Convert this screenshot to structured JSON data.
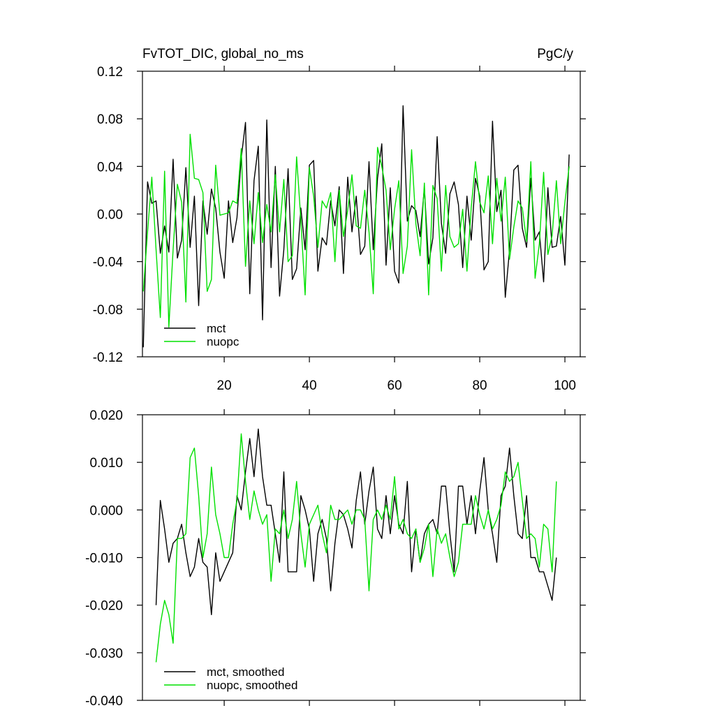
{
  "chart_data": [
    {
      "type": "line",
      "title": "FvTOT_DIC, global_no_ms",
      "units": "PgC/y",
      "x": [
        1,
        2,
        3,
        4,
        5,
        6,
        7,
        8,
        9,
        10,
        11,
        12,
        13,
        14,
        15,
        16,
        17,
        18,
        19,
        20,
        21,
        22,
        23,
        24,
        25,
        26,
        27,
        28,
        29,
        30,
        31,
        32,
        33,
        34,
        35,
        36,
        37,
        38,
        39,
        40,
        41,
        42,
        43,
        44,
        45,
        46,
        47,
        48,
        49,
        50,
        51,
        52,
        53,
        54,
        55,
        56,
        57,
        58,
        59,
        60,
        61,
        62,
        63,
        64,
        65,
        66,
        67,
        68,
        69,
        70,
        71,
        72,
        73,
        74,
        75,
        76,
        77,
        78,
        79,
        80,
        81,
        82,
        83,
        84,
        85,
        86,
        87,
        88,
        89,
        90,
        91,
        92,
        93,
        94,
        95,
        96,
        97,
        98,
        99,
        100,
        101
      ],
      "series": [
        {
          "name": "mct",
          "color": "#000000",
          "values": [
            -0.112,
            0.027,
            0.009,
            0.011,
            -0.033,
            -0.01,
            -0.032,
            0.046,
            -0.037,
            -0.022,
            0.039,
            -0.028,
            0.015,
            -0.077,
            0.011,
            -0.017,
            0.021,
            0.005,
            -0.032,
            -0.054,
            0.011,
            -0.024,
            -0.003,
            0.047,
            0.077,
            -0.067,
            0.028,
            0.057,
            -0.089,
            0.079,
            -0.045,
            0.04,
            -0.069,
            -0.03,
            0.038,
            -0.055,
            -0.046,
            0.005,
            -0.03,
            0.041,
            0.045,
            -0.048,
            -0.02,
            -0.026,
            0.011,
            -0.01,
            0.023,
            -0.05,
            0.031,
            -0.015,
            0.015,
            -0.034,
            -0.027,
            0.044,
            -0.03,
            0.03,
            0.059,
            -0.043,
            0.022,
            -0.048,
            -0.058,
            0.091,
            -0.006,
            0.007,
            0.003,
            -0.019,
            0.022,
            -0.042,
            -0.02,
            0.065,
            -0.008,
            -0.033,
            0.017,
            0.027,
            0.008,
            -0.045,
            0.015,
            -0.022,
            0.03,
            0.015,
            -0.047,
            -0.04,
            0.078,
            0.002,
            0.02,
            -0.07,
            -0.03,
            0.037,
            0.041,
            -0.012,
            -0.028,
            0.03,
            -0.022,
            -0.015,
            -0.057,
            0.022,
            -0.028,
            -0.027,
            -0.002,
            -0.043,
            0.05
          ]
        },
        {
          "name": "nuopc",
          "color": "#00e000",
          "values": [
            -0.065,
            -0.015,
            0.031,
            -0.03,
            -0.087,
            0.036,
            -0.095,
            -0.03,
            0.025,
            0.01,
            -0.074,
            0.067,
            0.03,
            0.029,
            0.018,
            -0.065,
            -0.055,
            0.041,
            -0.001,
            0.0,
            0.001,
            0.011,
            0.009,
            0.055,
            -0.044,
            0.011,
            -0.025,
            0.018,
            -0.024,
            0.008,
            -0.015,
            0.033,
            -0.015,
            0.029,
            -0.04,
            -0.035,
            0.048,
            -0.005,
            -0.068,
            0.039,
            0.015,
            -0.028,
            0.011,
            0.005,
            0.018,
            -0.04,
            0.02,
            -0.019,
            0.003,
            0.033,
            -0.01,
            -0.012,
            0.02,
            -0.015,
            -0.067,
            0.056,
            0.04,
            0.02,
            -0.03,
            0.004,
            0.028,
            -0.05,
            -0.027,
            0.054,
            -0.008,
            -0.035,
            0.026,
            -0.068,
            0.024,
            0.013,
            -0.048,
            0.024,
            -0.019,
            -0.028,
            -0.025,
            0.004,
            -0.048,
            0.005,
            0.044,
            0.01,
            0.001,
            0.032,
            -0.025,
            0.03,
            -0.006,
            0.031,
            -0.038,
            -0.011,
            0.011,
            0.005,
            -0.023,
            0.044,
            -0.054,
            -0.025,
            0.035,
            -0.034,
            -0.018,
            0.028,
            -0.025,
            0.01,
            0.04
          ]
        }
      ],
      "xlim": [
        0.8,
        103.6
      ],
      "xticks": [
        20,
        40,
        60,
        80,
        100
      ],
      "xtick_labels": true,
      "ylim": [
        -0.12,
        0.12
      ],
      "yticks": [
        {
          "value": -0.12,
          "label": "-0.12"
        },
        {
          "value": -0.08,
          "label": "-0.08"
        },
        {
          "value": -0.04,
          "label": "-0.04"
        },
        {
          "value": 0,
          "label": "0.00"
        },
        0.04,
        0.08,
        0.12
      ],
      "legend": "lower left"
    },
    {
      "type": "line",
      "x": [
        4,
        5,
        6,
        7,
        8,
        9,
        10,
        11,
        12,
        13,
        14,
        15,
        16,
        17,
        18,
        19,
        20,
        21,
        22,
        23,
        24,
        25,
        26,
        27,
        28,
        29,
        30,
        31,
        32,
        33,
        34,
        35,
        36,
        37,
        38,
        39,
        40,
        41,
        42,
        43,
        44,
        45,
        46,
        47,
        48,
        49,
        50,
        51,
        52,
        53,
        54,
        55,
        56,
        57,
        58,
        59,
        60,
        61,
        62,
        63,
        64,
        65,
        66,
        67,
        68,
        69,
        70,
        71,
        72,
        73,
        74,
        75,
        76,
        77,
        78,
        79,
        80,
        81,
        82,
        83,
        84,
        85,
        86,
        87,
        88,
        89,
        90,
        91,
        92,
        93,
        94,
        95,
        96,
        97,
        98
      ],
      "series": [
        {
          "name": "mct, smoothed",
          "color": "#000000",
          "values": [
            -0.02,
            0.002,
            -0.004,
            -0.011,
            -0.007,
            -0.006,
            -0.003,
            -0.009,
            -0.014,
            -0.012,
            -0.006,
            -0.011,
            -0.012,
            -0.022,
            -0.009,
            -0.015,
            -0.013,
            -0.011,
            -0.009,
            0.003,
            0.0,
            0.008,
            0.015,
            0.007,
            0.017,
            0.007,
            0.001,
            0.001,
            -0.005,
            -0.011,
            0.008,
            -0.013,
            -0.013,
            -0.013,
            0.003,
            0.0,
            -0.004,
            -0.015,
            -0.005,
            -0.002,
            -0.006,
            -0.017,
            -0.007,
            0.0,
            -0.001,
            -0.004,
            -0.008,
            0.002,
            0.008,
            -0.003,
            0.004,
            0.009,
            -0.004,
            -0.006,
            0.003,
            -0.005,
            0.003,
            -0.003,
            -0.005,
            0.006,
            -0.013,
            -0.004,
            -0.011,
            -0.005,
            -0.003,
            -0.002,
            -0.005,
            0.005,
            0.005,
            -0.005,
            -0.013,
            0.005,
            0.005,
            -0.003,
            0.003,
            -0.005,
            0.004,
            0.011,
            0.0,
            -0.005,
            -0.011,
            0.003,
            0.005,
            0.013,
            0.003,
            -0.005,
            -0.006,
            0.003,
            -0.01,
            -0.01,
            -0.013,
            -0.013,
            -0.016,
            -0.019,
            -0.01
          ]
        },
        {
          "name": "nuopc, smoothed",
          "color": "#00e000",
          "values": [
            -0.032,
            -0.024,
            -0.019,
            -0.022,
            -0.028,
            -0.006,
            -0.006,
            -0.005,
            0.011,
            0.013,
            0.003,
            -0.01,
            -0.005,
            0.009,
            -0.001,
            -0.005,
            -0.01,
            -0.01,
            -0.003,
            0.002,
            0.016,
            0.006,
            -0.002,
            0.004,
            0.0,
            -0.003,
            -0.001,
            -0.015,
            -0.004,
            -0.005,
            0.0,
            -0.006,
            -0.002,
            0.006,
            -0.005,
            -0.012,
            -0.003,
            -0.001,
            0.001,
            -0.005,
            -0.009,
            0.001,
            -0.002,
            -0.002,
            -0.001,
            0.0,
            -0.003,
            0.0,
            0.0,
            -0.002,
            -0.017,
            -0.002,
            0.0,
            -0.002,
            0.001,
            -0.002,
            0.007,
            -0.004,
            -0.002,
            -0.005,
            -0.006,
            -0.004,
            -0.011,
            -0.008,
            -0.003,
            -0.014,
            -0.004,
            -0.007,
            -0.005,
            -0.01,
            -0.014,
            -0.011,
            -0.003,
            -0.003,
            -0.003,
            0.003,
            -0.001,
            -0.004,
            0.0,
            -0.004,
            -0.002,
            0.001,
            0.008,
            0.006,
            0.007,
            0.01,
            0.002,
            -0.006,
            -0.005,
            -0.006,
            -0.012,
            -0.003,
            -0.004,
            -0.013,
            0.006
          ]
        }
      ],
      "xlim": [
        0.8,
        103.6
      ],
      "xticks": [
        20,
        40,
        60,
        80,
        100
      ],
      "xtick_labels": false,
      "ylim": [
        -0.04,
        0.02
      ],
      "yticks": [
        {
          "value": -0.04,
          "label": "-0.040"
        },
        {
          "value": -0.03,
          "label": "-0.030"
        },
        {
          "value": -0.02,
          "label": "-0.020"
        },
        {
          "value": -0.01,
          "label": "-0.010"
        },
        {
          "value": 0,
          "label": "0.000"
        },
        {
          "value": 0.01,
          "label": "0.010"
        },
        {
          "value": 0.02,
          "label": "0.020"
        }
      ],
      "legend": "lower left"
    }
  ]
}
